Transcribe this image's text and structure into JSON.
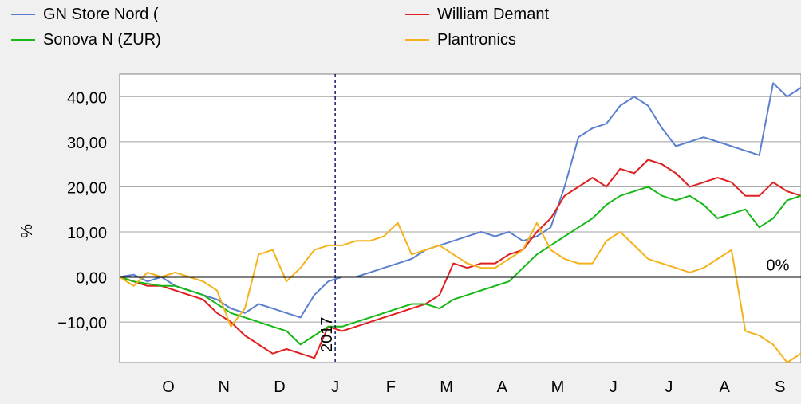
{
  "chart_data": {
    "type": "line",
    "ylabel": "%",
    "ylim": [
      -19,
      45
    ],
    "yticks": [
      40,
      30,
      20,
      10,
      0,
      -10
    ],
    "ytick_labels": [
      "40,00",
      "30,00",
      "20,00",
      "10,00",
      "0,00",
      "−10,00"
    ],
    "xlim": [
      0,
      49
    ],
    "month_ticks": [
      {
        "label": "O",
        "x": 3.5
      },
      {
        "label": "N",
        "x": 7.5
      },
      {
        "label": "D",
        "x": 11.5
      },
      {
        "label": "J",
        "x": 15.5
      },
      {
        "label": "F",
        "x": 19.5
      },
      {
        "label": "M",
        "x": 23.5
      },
      {
        "label": "A",
        "x": 27.5
      },
      {
        "label": "M",
        "x": 31.5
      },
      {
        "label": "J",
        "x": 35.5
      },
      {
        "label": "J",
        "x": 39.5
      },
      {
        "label": "A",
        "x": 43.5
      },
      {
        "label": "S",
        "x": 47.5
      }
    ],
    "year_marker": {
      "label": "2017",
      "x": 15.5
    },
    "zero_label": "0%",
    "grid": true,
    "legend_position": "top",
    "series": [
      {
        "name": "GN Store Nord (",
        "color": "#5b7fcf",
        "values": [
          0,
          0.5,
          -1,
          0,
          -2,
          -3,
          -4,
          -5,
          -7,
          -8,
          -6,
          -7,
          -8,
          -9,
          -4,
          -1,
          0,
          0,
          1,
          2,
          3,
          4,
          6,
          7,
          8,
          9,
          10,
          9,
          10,
          8,
          9,
          11,
          20,
          31,
          33,
          34,
          38,
          40,
          38,
          33,
          29,
          30,
          31,
          30,
          29,
          28,
          27,
          43,
          40,
          42
        ]
      },
      {
        "name": "William Demant",
        "color": "#e02020",
        "values": [
          0,
          -1,
          -2,
          -2,
          -3,
          -4,
          -5,
          -8,
          -10,
          -13,
          -15,
          -17,
          -16,
          -17,
          -18,
          -11,
          -12,
          -11,
          -10,
          -9,
          -8,
          -7,
          -6,
          -4,
          3,
          2,
          3,
          3,
          5,
          6,
          10,
          13,
          18,
          20,
          22,
          20,
          24,
          23,
          26,
          25,
          23,
          20,
          21,
          22,
          21,
          18,
          18,
          21,
          19,
          18
        ]
      },
      {
        "name": "Sonova N (ZUR)",
        "color": "#18b818",
        "values": [
          0,
          -1,
          -1.5,
          -2,
          -2,
          -3,
          -4,
          -6,
          -8,
          -9,
          -10,
          -11,
          -12,
          -15,
          -13,
          -11,
          -11,
          -10,
          -9,
          -8,
          -7,
          -6,
          -6,
          -7,
          -5,
          -4,
          -3,
          -2,
          -1,
          2,
          5,
          7,
          9,
          11,
          13,
          16,
          18,
          19,
          20,
          18,
          17,
          18,
          16,
          13,
          14,
          15,
          11,
          13,
          17,
          18
        ]
      },
      {
        "name": "Plantronics",
        "color": "#f5b21c",
        "values": [
          0,
          -2,
          1,
          0,
          1,
          0,
          -1,
          -3,
          -11,
          -7,
          5,
          6,
          -1,
          2,
          6,
          7,
          7,
          8,
          8,
          9,
          12,
          5,
          6,
          7,
          5,
          3,
          2,
          2,
          4,
          6,
          12,
          6,
          4,
          3,
          3,
          8,
          10,
          7,
          4,
          3,
          2,
          1,
          2,
          4,
          6,
          -12,
          -13,
          -15,
          -19,
          -17
        ]
      }
    ]
  }
}
